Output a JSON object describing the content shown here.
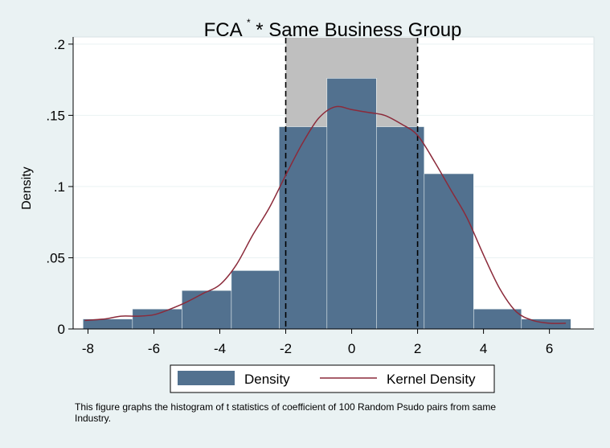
{
  "chart_data": {
    "type": "bar",
    "title": "FCA",
    "title_superscript": "*",
    "title_rest": "* Same Business Group",
    "ylabel": "Density",
    "xlabel": "",
    "xlim": [
      -8.45,
      7.35
    ],
    "ylim": [
      0,
      0.205
    ],
    "x_ticks": [
      "-8",
      "-6",
      "-4",
      "-2",
      "0",
      "2",
      "4",
      "6"
    ],
    "y_ticks": [
      "0",
      ".05",
      ".1",
      ".15",
      ".2"
    ],
    "x_tick_values": [
      -8,
      -6,
      -4,
      -2,
      0,
      2,
      4,
      6
    ],
    "y_tick_values": [
      0,
      0.05,
      0.1,
      0.15,
      0.2
    ],
    "shaded_region": [
      -2,
      2
    ],
    "reference_lines": [
      -2,
      2
    ],
    "bin_edges": [
      -8.15,
      -6.65,
      -5.15,
      -3.65,
      -2.2,
      -0.75,
      0.75,
      2.2,
      3.7,
      5.15,
      6.65
    ],
    "series": [
      {
        "name": "Density",
        "type": "bar",
        "color": "#52718f",
        "values": [
          0.007,
          0.014,
          0.027,
          0.041,
          0.142,
          0.176,
          0.142,
          0.109,
          0.014,
          0.007
        ]
      },
      {
        "name": "Kernel Density",
        "type": "line",
        "color": "#8b2a3a",
        "x": [
          -8.1,
          -7.5,
          -7.0,
          -6.5,
          -6.0,
          -5.5,
          -5.0,
          -4.5,
          -4.0,
          -3.5,
          -3.0,
          -2.5,
          -2.0,
          -1.5,
          -1.0,
          -0.5,
          0.0,
          0.5,
          1.0,
          1.5,
          2.0,
          2.5,
          3.0,
          3.5,
          4.0,
          4.5,
          5.0,
          5.5,
          6.0,
          6.5
        ],
        "y": [
          0.006,
          0.007,
          0.009,
          0.009,
          0.01,
          0.014,
          0.019,
          0.025,
          0.031,
          0.045,
          0.066,
          0.085,
          0.108,
          0.13,
          0.148,
          0.156,
          0.154,
          0.152,
          0.15,
          0.144,
          0.136,
          0.118,
          0.098,
          0.078,
          0.052,
          0.028,
          0.012,
          0.006,
          0.004,
          0.004
        ]
      }
    ],
    "legend": {
      "position": "bottom",
      "items": [
        {
          "label": "Density",
          "kind": "box",
          "color": "#52718f"
        },
        {
          "label": "Kernel Density",
          "kind": "line",
          "color": "#8b2a3a"
        }
      ]
    },
    "grid": true,
    "colors": {
      "background": "#eaf2f3",
      "plot_background": "#ffffff",
      "shade": "#bfbfbf",
      "grid": "#eaf2f3",
      "bar": "#52718f",
      "kde": "#8b2a3a"
    }
  },
  "note": "This figure graphs the histogram of t statistics of coefficient of 100 Random Psudo pairs from same Industry."
}
